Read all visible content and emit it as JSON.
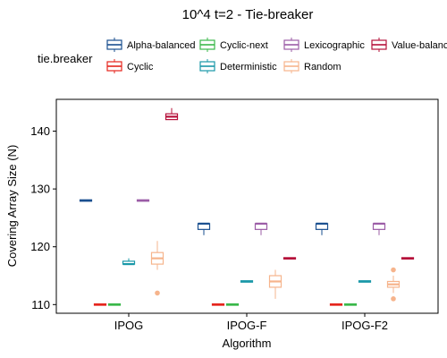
{
  "chart_data": {
    "type": "boxplot",
    "title": "10^4 t=2 - Tie-breaker",
    "xlabel": "Algorithm",
    "ylabel": "Covering Array Size (N)",
    "ylim": [
      108.5,
      145.5
    ],
    "yticks": [
      110,
      120,
      130,
      140
    ],
    "grid": false,
    "legend": {
      "title": "tie.breaker",
      "placement": "top",
      "entries": [
        {
          "name": "Alpha-balanced",
          "color": "#1a4f8f"
        },
        {
          "name": "Cyclic",
          "color": "#e5251d"
        },
        {
          "name": "Cyclic-next",
          "color": "#3ab84a"
        },
        {
          "name": "Deterministic",
          "color": "#1998a8"
        },
        {
          "name": "Lexicographic",
          "color": "#9b5ca6"
        },
        {
          "name": "Random",
          "color": "#f6b48c"
        },
        {
          "name": "Value-balanced",
          "color": "#b5103a"
        }
      ]
    },
    "categories": [
      "IPOG",
      "IPOG-F",
      "IPOG-F2"
    ],
    "series": [
      {
        "name": "Alpha-balanced",
        "boxes": [
          {
            "min": 128,
            "q1": 128,
            "median": 128,
            "q3": 128,
            "max": 128,
            "outliers": []
          },
          {
            "min": 122,
            "q1": 123,
            "median": 124,
            "q3": 124,
            "max": 124,
            "outliers": []
          },
          {
            "min": 122,
            "q1": 123,
            "median": 124,
            "q3": 124,
            "max": 124,
            "outliers": []
          }
        ]
      },
      {
        "name": "Cyclic",
        "boxes": [
          {
            "min": 110,
            "q1": 110,
            "median": 110,
            "q3": 110,
            "max": 110,
            "outliers": []
          },
          {
            "min": 110,
            "q1": 110,
            "median": 110,
            "q3": 110,
            "max": 110,
            "outliers": []
          },
          {
            "min": 110,
            "q1": 110,
            "median": 110,
            "q3": 110,
            "max": 110,
            "outliers": []
          }
        ]
      },
      {
        "name": "Cyclic-next",
        "boxes": [
          {
            "min": 110,
            "q1": 110,
            "median": 110,
            "q3": 110,
            "max": 110,
            "outliers": []
          },
          {
            "min": 110,
            "q1": 110,
            "median": 110,
            "q3": 110,
            "max": 110,
            "outliers": []
          },
          {
            "min": 110,
            "q1": 110,
            "median": 110,
            "q3": 110,
            "max": 110,
            "outliers": []
          }
        ]
      },
      {
        "name": "Deterministic",
        "boxes": [
          {
            "min": 117,
            "q1": 117,
            "median": 117,
            "q3": 117.5,
            "max": 118,
            "outliers": []
          },
          {
            "min": 114,
            "q1": 114,
            "median": 114,
            "q3": 114,
            "max": 114,
            "outliers": []
          },
          {
            "min": 114,
            "q1": 114,
            "median": 114,
            "q3": 114,
            "max": 114,
            "outliers": []
          }
        ]
      },
      {
        "name": "Lexicographic",
        "boxes": [
          {
            "min": 128,
            "q1": 128,
            "median": 128,
            "q3": 128,
            "max": 128,
            "outliers": []
          },
          {
            "min": 122,
            "q1": 123,
            "median": 124,
            "q3": 124,
            "max": 124,
            "outliers": []
          },
          {
            "min": 122,
            "q1": 123,
            "median": 124,
            "q3": 124,
            "max": 124,
            "outliers": []
          }
        ]
      },
      {
        "name": "Random",
        "boxes": [
          {
            "min": 116,
            "q1": 117,
            "median": 118,
            "q3": 119,
            "max": 121,
            "outliers": [
              112
            ]
          },
          {
            "min": 111,
            "q1": 113,
            "median": 114,
            "q3": 115,
            "max": 116,
            "outliers": []
          },
          {
            "min": 112,
            "q1": 113,
            "median": 113.5,
            "q3": 114,
            "max": 115,
            "outliers": [
              116,
              111
            ]
          }
        ]
      },
      {
        "name": "Value-balanced",
        "boxes": [
          {
            "min": 142,
            "q1": 142,
            "median": 142.5,
            "q3": 143,
            "max": 144,
            "outliers": []
          },
          {
            "min": 118,
            "q1": 118,
            "median": 118,
            "q3": 118,
            "max": 118,
            "outliers": []
          },
          {
            "min": 118,
            "q1": 118,
            "median": 118,
            "q3": 118,
            "max": 118,
            "outliers": []
          }
        ]
      }
    ]
  }
}
